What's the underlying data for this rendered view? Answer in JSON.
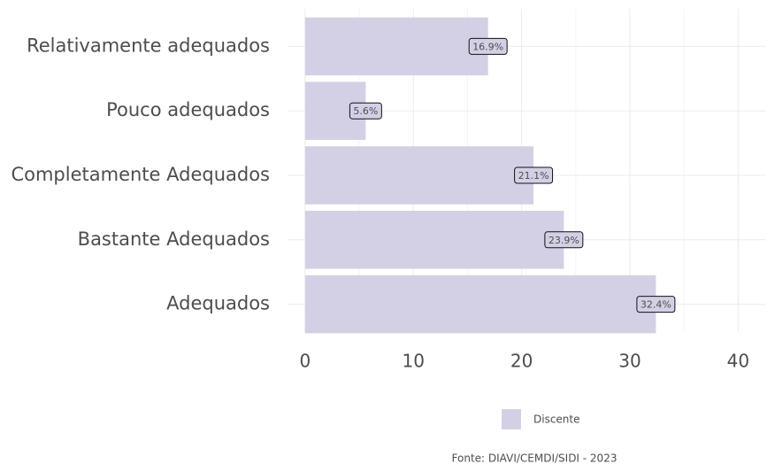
{
  "chart_data": {
    "type": "bar",
    "orientation": "horizontal",
    "categories": [
      "Relativamente adequados",
      "Pouco adequados",
      "Completamente Adequados",
      "Bastante Adequados",
      "Adequados"
    ],
    "series": [
      {
        "name": "Discente",
        "color": "#d3d0e6",
        "values": [
          16.9,
          5.6,
          21.1,
          23.9,
          32.4
        ],
        "value_labels": [
          "16.9%",
          "5.6%",
          "21.1%",
          "23.9%",
          "32.4%"
        ]
      }
    ],
    "xlim": [
      -1.62,
      42.5
    ],
    "xticks": [
      0,
      10,
      20,
      30,
      40
    ],
    "x_minor_ticks": [
      5,
      15,
      25,
      35
    ],
    "grid": true,
    "legend": "bottom",
    "caption": "Fonte: DIAVI/CEMDI/SIDI - 2023"
  }
}
